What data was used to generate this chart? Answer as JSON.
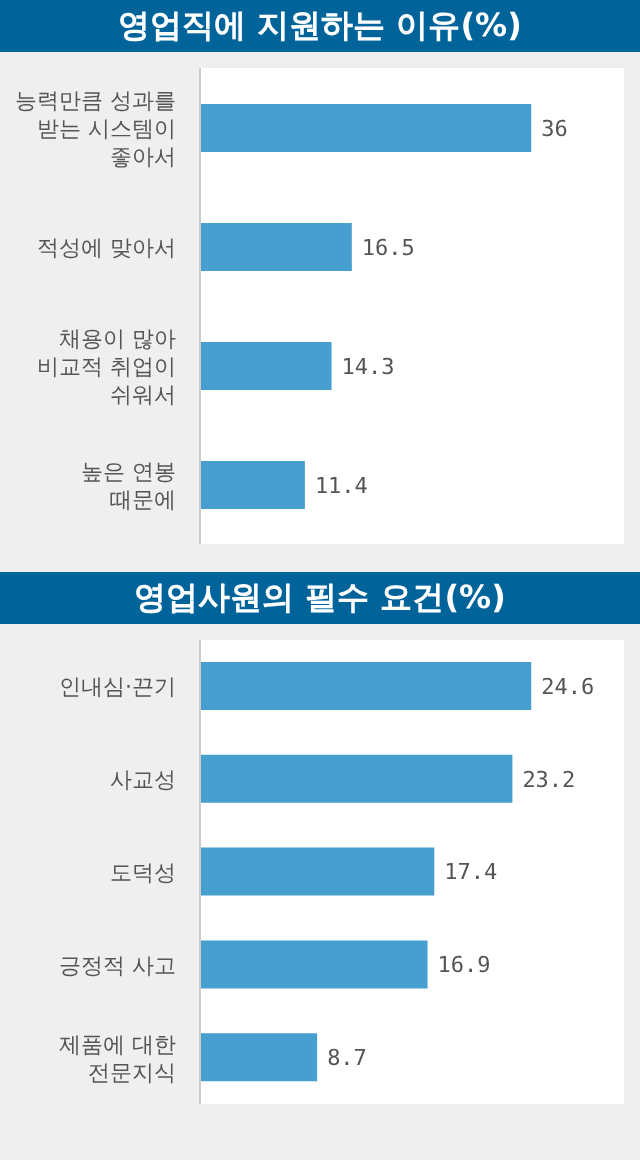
{
  "chart_data": [
    {
      "type": "bar",
      "orientation": "horizontal",
      "title": "영업직에 지원하는 이유(%)",
      "categories": [
        "능력만큼 성과를 받는 시스템이 좋아서",
        "적성에 맞아서",
        "채용이 많아 비교적 취업이 쉬워서",
        "높은 연봉 때문에"
      ],
      "values": [
        36,
        16.5,
        14.3,
        11.4
      ],
      "color": "#479fd0",
      "data_labels": true,
      "tick_labels": "y",
      "grid": false,
      "legend": false
    },
    {
      "type": "bar",
      "orientation": "horizontal",
      "title": "영업사원의 필수 요건(%)",
      "categories": [
        "인내심·끈기",
        "사교성",
        "도덕성",
        "긍정적 사고",
        "제품에 대한 전문지식"
      ],
      "values": [
        24.6,
        23.2,
        17.4,
        16.9,
        8.7
      ],
      "color": "#479fd0",
      "data_labels": true,
      "tick_labels": "y",
      "grid": false,
      "legend": false
    }
  ]
}
